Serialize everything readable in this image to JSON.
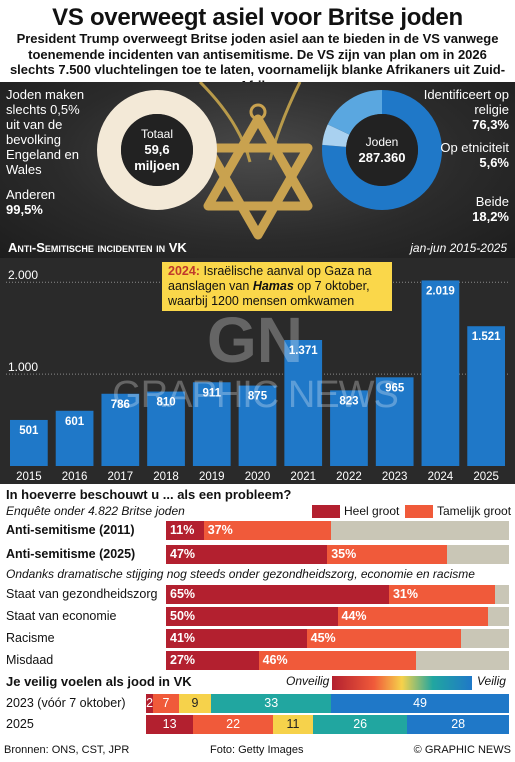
{
  "title": "VS overweegt asiel voor Britse joden",
  "intro": "President Trump overweegt Britse joden asiel aan te bieden in de VS vanwege toenemende incidenten van antisemitisme. De VS zijn van plan om in 2026 slechts 7.500 vluchtelingen toe te laten, voornamelijk blanke Afrikaners uit Zuid-Afrika",
  "hero": {
    "left_text_a": "Joden maken slechts 0,5% uit van de bevolking Engeland en Wales",
    "left_text_b_label": "Anderen",
    "left_text_b_value": "99,5%",
    "donut1_label": "Totaal",
    "donut1_value": "59,6",
    "donut1_unit": "miljoen",
    "donut2_label": "Joden",
    "donut2_value": "287.360",
    "right_items": [
      {
        "label": "Identificeert op religie",
        "value": "76,3%"
      },
      {
        "label": "Op etniciteit",
        "value": "5,6%"
      },
      {
        "label": "Beide",
        "value": "18,2%"
      }
    ],
    "colors": {
      "donut_light": "#f3e9d7",
      "donut_blue": "#1f78c8",
      "donut_mid": "#5aa7e0",
      "donut_pale": "#a9d1f0"
    }
  },
  "chart_data": [
    {
      "type": "bar",
      "title": "Anti-Semitische incidenten in VK",
      "period": "jan-jun 2015-2025",
      "categories": [
        "2015",
        "2016",
        "2017",
        "2018",
        "2019",
        "2020",
        "2021",
        "2022",
        "2023",
        "2024",
        "2025"
      ],
      "values": [
        501,
        601,
        786,
        810,
        911,
        875,
        1371,
        823,
        965,
        2019,
        1521
      ],
      "value_labels": [
        "501",
        "601",
        "786",
        "810",
        "911",
        "875",
        "1.371",
        "823",
        "965",
        "2.019",
        "1.521"
      ],
      "yticks": [
        1000,
        2000
      ],
      "ytick_labels": [
        "1.000",
        "2.000"
      ],
      "ylim": [
        0,
        2100
      ],
      "bar_color": "#1f78c8",
      "annotation": {
        "year_label": "2024:",
        "text_a": "Israëlische aanval op Gaza na aanslagen van",
        "text_bold": "Hamas",
        "text_b": "op 7 oktober, waarbij 1200 mensen omkwamen"
      }
    },
    {
      "type": "bar",
      "title": "In hoeverre beschouwt u ... als een probleem?",
      "subtitle": "Enquête onder 4.822 Britse joden",
      "series_names": [
        "Heel groot",
        "Tamelijk groot"
      ],
      "colors": [
        "#b3202f",
        "#f05a3a",
        "#c9c6b6"
      ],
      "note": "Ondanks dramatische stijging nog steeds onder gezondheidszorg, economie en racisme",
      "rows": [
        {
          "label": "Anti-semitisme (2011)",
          "bold": true,
          "values": [
            11,
            37
          ]
        },
        {
          "label": "Anti-semitisme (2025)",
          "bold": true,
          "values": [
            47,
            35
          ]
        },
        {
          "label": "Staat van gezondheidszorg",
          "bold": false,
          "values": [
            65,
            31
          ]
        },
        {
          "label": "Staat van economie",
          "bold": false,
          "values": [
            50,
            44
          ]
        },
        {
          "label": "Racisme",
          "bold": false,
          "values": [
            41,
            45
          ]
        },
        {
          "label": "Misdaad",
          "bold": false,
          "values": [
            27,
            46
          ]
        }
      ]
    },
    {
      "type": "bar",
      "title": "Je veilig voelen als jood in VK",
      "scale_left": "Onveilig",
      "scale_right": "Veilig",
      "colors": [
        "#b3202f",
        "#f05a3a",
        "#f6d24b",
        "#21a6a0",
        "#1f78c8"
      ],
      "rows": [
        {
          "label": "2023 (vóór 7 oktober)",
          "values": [
            2,
            7,
            9,
            33,
            49
          ]
        },
        {
          "label": "2025",
          "values": [
            13,
            22,
            11,
            26,
            28
          ]
        }
      ]
    }
  ],
  "watermark": {
    "logo": "GN",
    "text": "GRAPHIC NEWS"
  },
  "footer": {
    "sources": "Bronnen: ONS, CST, JPR",
    "photo": "Foto: Getty Images",
    "copyright": "© GRAPHIC NEWS"
  }
}
